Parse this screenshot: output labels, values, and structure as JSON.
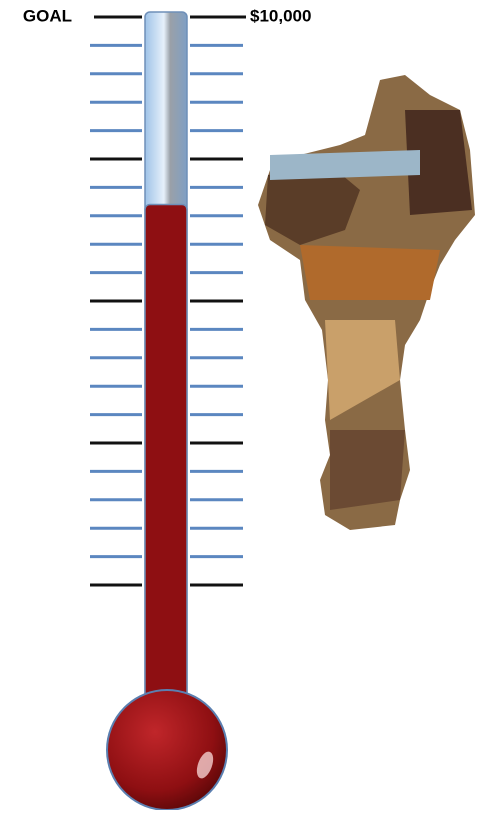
{
  "chart_data": {
    "type": "thermometer",
    "goal_text": "GOAL",
    "value": 6700,
    "ylim": [
      0,
      10000
    ],
    "yticks": [
      {
        "value": 10000,
        "label": "$10,000"
      }
    ],
    "major_ticks": [
      0,
      2500,
      5000,
      7500
    ],
    "minor_ticks": [
      500,
      1000,
      1500,
      2000,
      3000,
      3500,
      4000,
      4500,
      5500,
      6000,
      6500,
      7000,
      8000,
      8500,
      9000,
      9500
    ],
    "color": "#8e0f12",
    "major_color": "#111111",
    "minor_color": "#5b87c0"
  }
}
